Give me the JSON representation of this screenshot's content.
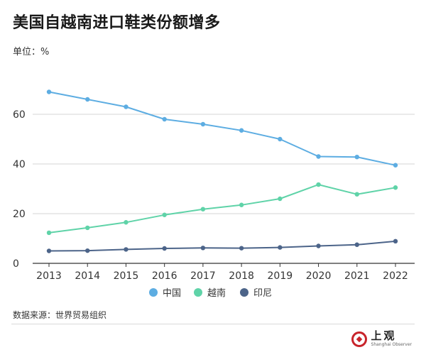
{
  "header": {
    "title": "美国自越南进口鞋类份额增多",
    "unit": "单位：%"
  },
  "footer": {
    "source": "数据来源：世界贸易组织",
    "logo_cn": "上观",
    "logo_en": "Shanghai Observer"
  },
  "chart_data": {
    "type": "line",
    "x": [
      "2013",
      "2014",
      "2015",
      "2016",
      "2017",
      "2018",
      "2019",
      "2020",
      "2021",
      "2022"
    ],
    "series": [
      {
        "name": "中国",
        "color": "#5dade2",
        "values": [
          69.0,
          66.0,
          63.0,
          58.0,
          56.0,
          53.5,
          50.0,
          43.0,
          42.8,
          39.5
        ]
      },
      {
        "name": "越南",
        "color": "#5fd3a8",
        "values": [
          12.3,
          14.3,
          16.5,
          19.5,
          21.8,
          23.5,
          26.0,
          31.7,
          27.8,
          30.5
        ]
      },
      {
        "name": "印尼",
        "color": "#4c6489",
        "values": [
          5.0,
          5.1,
          5.6,
          6.0,
          6.2,
          6.1,
          6.4,
          7.0,
          7.5,
          8.9
        ]
      }
    ],
    "yticks": [
      0,
      20,
      40,
      60
    ],
    "ylim": [
      0,
      70
    ],
    "grid": true,
    "legend": "bottom-center"
  }
}
